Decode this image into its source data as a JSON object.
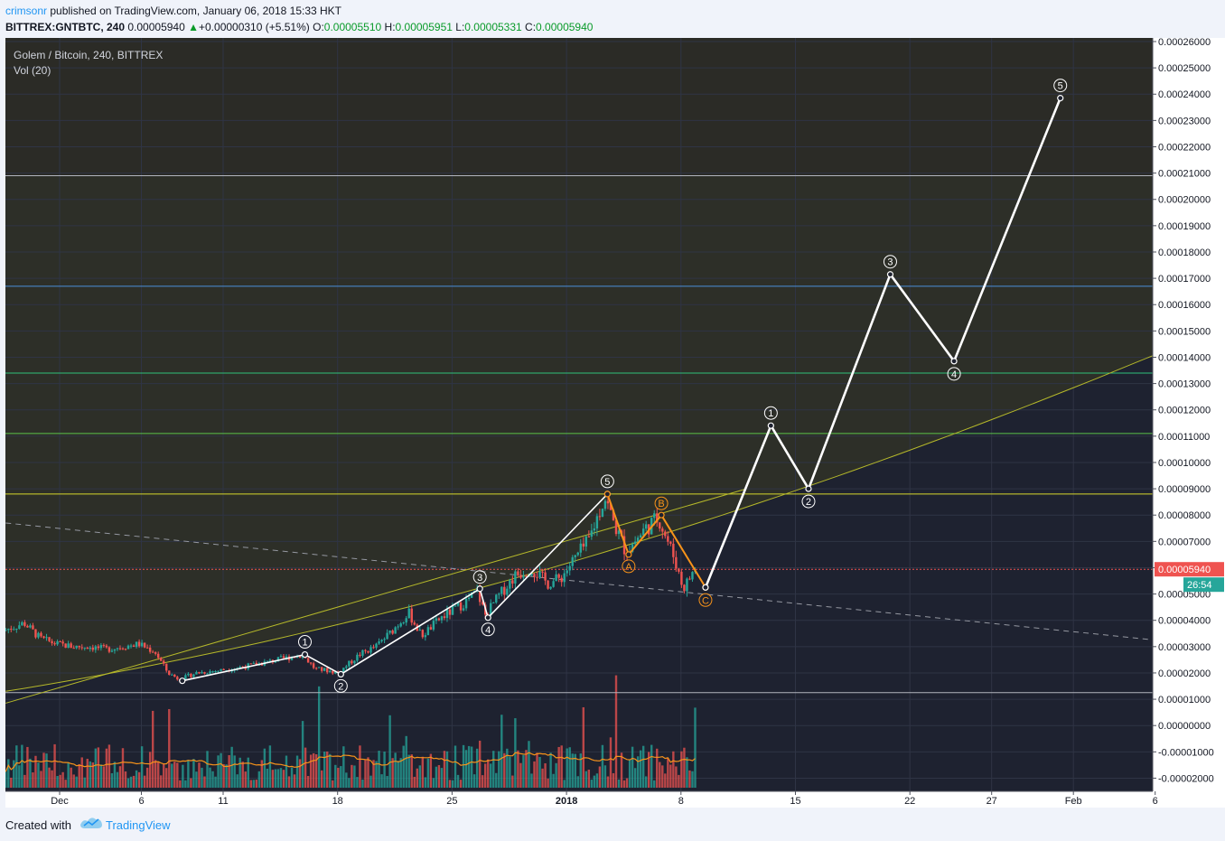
{
  "header": {
    "author": "crimsonr",
    "published": "published on TradingView.com, January 06, 2018 15:33 HKT",
    "symbol": "BITTREX:GNTBTC, 240",
    "last": "0.00005940",
    "up_arrow": "▲",
    "change": "+0.00000310 (+5.51%)",
    "o_label": "O:",
    "o_value": "0.00005510",
    "h_label": "H:",
    "h_value": "0.00005951",
    "l_label": "L:",
    "l_value": "0.00005331",
    "c_label": "C:",
    "c_value": "0.00005940"
  },
  "legend": {
    "title": "Golem / Bitcoin, 240, BITTREX",
    "volume": "Vol (20)"
  },
  "footer": {
    "created_with": "Created with",
    "brand": "TradingView"
  },
  "colors": {
    "background": "#1e2230",
    "grid": "#2f3445",
    "text": "#d1d4dc",
    "up": "#26a69a",
    "down": "#ef5350",
    "wave": "#ffffff",
    "abc": "#f7931a",
    "ma": "#f7931a",
    "price_line": "#ef5350",
    "price_tag": "#26a69a"
  },
  "chart_data": {
    "type": "candlestick",
    "title": "Golem / Bitcoin, 240, BITTREX",
    "price_axis": {
      "ticks": [
        "0.00026000",
        "0.00025000",
        "0.00024000",
        "0.00023000",
        "0.00022000",
        "0.00021000",
        "0.00020000",
        "0.00019000",
        "0.00018000",
        "0.00017000",
        "0.00016000",
        "0.00015000",
        "0.00014000",
        "0.00013000",
        "0.00012000",
        "0.00011000",
        "0.00010000",
        "0.00009000",
        "0.00008000",
        "0.00007000",
        "0.00006000",
        "0.00005000",
        "0.00004000",
        "0.00003000",
        "0.00002000",
        "0.00001000",
        "0.00000000",
        "-0.00001000",
        "-0.00002000"
      ],
      "min": -2.5e-05,
      "max": 0.00026
    },
    "time_axis": {
      "labels": [
        {
          "day": 0,
          "label": "Dec"
        },
        {
          "day": 5,
          "label": "6"
        },
        {
          "day": 10,
          "label": "11"
        },
        {
          "day": 17,
          "label": "18"
        },
        {
          "day": 24,
          "label": "25"
        },
        {
          "day": 31,
          "label": "2018"
        },
        {
          "day": 38,
          "label": "8"
        },
        {
          "day": 45,
          "label": "15"
        },
        {
          "day": 52,
          "label": "22"
        },
        {
          "day": 57,
          "label": "27"
        },
        {
          "day": 62,
          "label": "Feb"
        },
        {
          "day": 67,
          "label": "6"
        }
      ],
      "bold": [
        "2018"
      ]
    },
    "current_price": {
      "value": 5.94e-05,
      "label": "0.00005940",
      "countdown": "26:54"
    },
    "price_path": [
      [
        -3.3,
        3.6e-05
      ],
      [
        -2,
        3.9e-05
      ],
      [
        -1,
        3.3e-05
      ],
      [
        0,
        3.1e-05
      ],
      [
        1,
        3e-05
      ],
      [
        2,
        3e-05
      ],
      [
        3,
        2.9e-05
      ],
      [
        4,
        3e-05
      ],
      [
        5,
        3.1e-05
      ],
      [
        6,
        2.8e-05
      ],
      [
        6.8,
        2e-05
      ],
      [
        7.5,
        1.75e-05
      ],
      [
        8.5,
        2e-05
      ],
      [
        10,
        2.1e-05
      ],
      [
        12,
        2.3e-05
      ],
      [
        13.5,
        2.5e-05
      ],
      [
        15,
        2.7e-05
      ],
      [
        15.8,
        2.15e-05
      ],
      [
        16.5,
        2.1e-05
      ],
      [
        17.2,
        2e-05
      ],
      [
        18.5,
        2.7e-05
      ],
      [
        19.5,
        3e-05
      ],
      [
        20.5,
        3.6e-05
      ],
      [
        21.5,
        4.3e-05
      ],
      [
        22.3,
        3.4e-05
      ],
      [
        23.5,
        4.1e-05
      ],
      [
        25,
        4.7e-05
      ],
      [
        25.7,
        5.1e-05
      ],
      [
        26.2,
        4.2e-05
      ],
      [
        27,
        4.9e-05
      ],
      [
        28,
        5.7e-05
      ],
      [
        29,
        6e-05
      ],
      [
        30,
        5.4e-05
      ],
      [
        30.8,
        5.6e-05
      ],
      [
        31.5,
        6.2e-05
      ],
      [
        32.5,
        7e-05
      ],
      [
        33.5,
        8.7e-05
      ],
      [
        34,
        7.8e-05
      ],
      [
        34.8,
        6.6e-05
      ],
      [
        36,
        7.5e-05
      ],
      [
        36.8,
        7.9e-05
      ],
      [
        37.3,
        7.1e-05
      ],
      [
        37.8,
        6.3e-05
      ],
      [
        38.3,
        5.2e-05
      ],
      [
        39,
        5.94e-05
      ]
    ],
    "volume": {
      "max_height_fraction": 1.0
    },
    "horizontal_levels": [
      {
        "value": 0.000209,
        "color": "#b2b5be"
      },
      {
        "value": 0.000167,
        "color": "#4a8fd8"
      },
      {
        "value": 0.000134,
        "color": "#2fc07a"
      },
      {
        "value": 0.000111,
        "color": "#5cc44a"
      },
      {
        "value": 8.8e-05,
        "color": "#d7d72a"
      },
      {
        "value": 5.94e-05,
        "color": "#ef5350"
      },
      {
        "value": 1.25e-05,
        "color": "#b2b5be"
      }
    ],
    "wave_labels": {
      "completed": [
        "1",
        "2",
        "3",
        "4",
        "5"
      ],
      "correction": [
        "A",
        "B",
        "C"
      ],
      "projected": [
        "1",
        "2",
        "3",
        "4",
        "5"
      ]
    },
    "completed_wave": [
      {
        "day": 7.5,
        "value": 1.7e-05,
        "label": ""
      },
      {
        "day": 15,
        "value": 2.7e-05,
        "label": "1"
      },
      {
        "day": 17.2,
        "value": 1.95e-05,
        "label": "2"
      },
      {
        "day": 25.7,
        "value": 5.2e-05,
        "label": "3"
      },
      {
        "day": 26.2,
        "value": 4.1e-05,
        "label": "4"
      },
      {
        "day": 33.5,
        "value": 8.8e-05,
        "label": "5"
      }
    ],
    "abc_wave": [
      {
        "day": 33.5,
        "value": 8.8e-05,
        "label": ""
      },
      {
        "day": 34.8,
        "value": 6.5e-05,
        "label": "A"
      },
      {
        "day": 36.8,
        "value": 8e-05,
        "label": "B"
      },
      {
        "day": 39.5,
        "value": 5.25e-05,
        "label": "C"
      }
    ],
    "projected_wave": [
      {
        "day": 39.5,
        "value": 5.25e-05,
        "label": ""
      },
      {
        "day": 43.5,
        "value": 0.000114,
        "label": "1"
      },
      {
        "day": 45.8,
        "value": 9e-05,
        "label": "2"
      },
      {
        "day": 50.8,
        "value": 0.0001715,
        "label": "3"
      },
      {
        "day": 54.7,
        "value": 0.0001385,
        "label": "4"
      },
      {
        "day": 61.2,
        "value": 0.0002385,
        "label": "5"
      }
    ],
    "trendlines": [
      {
        "style": "dashed",
        "color": "#9598a1",
        "from": [
          -3.3,
          7.7e-05
        ],
        "to": [
          67,
          3.25e-05
        ]
      },
      {
        "style": "solid",
        "color": "#b5b82a",
        "from": [
          -3.3,
          1.3e-05
        ],
        "mid": [
          30,
          5.4e-05
        ],
        "to": [
          67,
          0.000141
        ]
      },
      {
        "style": "solid",
        "color": "#b5b82a",
        "from": [
          -3.3,
          8.5e-06
        ],
        "to": [
          42,
          9e-05
        ]
      }
    ]
  }
}
